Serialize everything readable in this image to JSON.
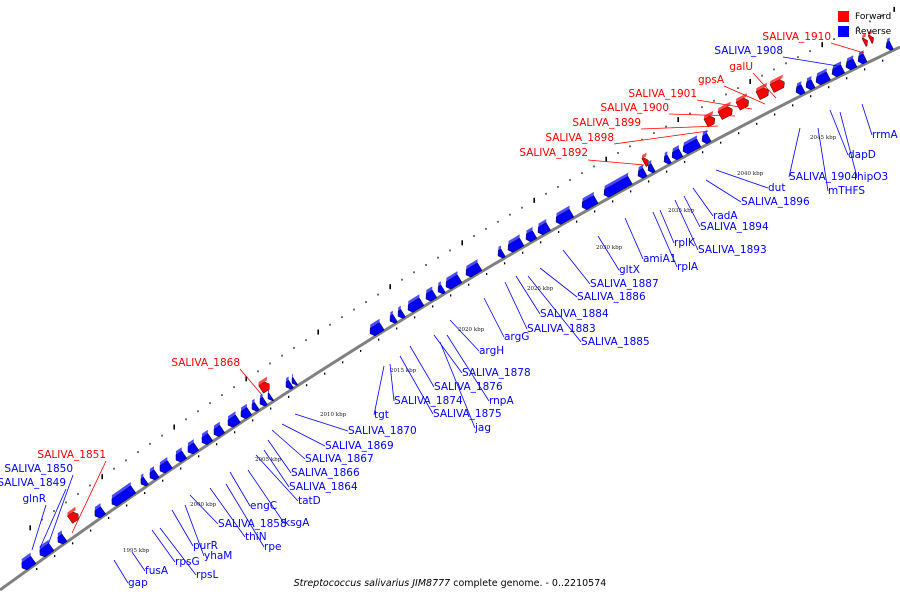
{
  "legend": {
    "forward_label": "Forward",
    "reverse_label": "Reverse",
    "forward_color": "#ff0000",
    "reverse_color": "#0000ff"
  },
  "caption": {
    "organism": "Streptococcus salivarius JIM8777",
    "rest": " complete genome. - 0..2210574"
  },
  "colors": {
    "forward": "#ff0000",
    "reverse": "#0000ff",
    "axis": "#808080"
  },
  "ticks": [
    "1995 kbp",
    "2000 kbp",
    "2005 kbp",
    "2010 kbp",
    "2015 kbp",
    "2020 kbp",
    "2025 kbp",
    "2030 kbp",
    "2035 kbp",
    "2040 kbp",
    "2045 kbp"
  ],
  "forward_genes": [
    "SALIVA_1851",
    "SALIVA_1868",
    "SALIVA_1892",
    "SALIVA_1898",
    "SALIVA_1899",
    "SALIVA_1900",
    "SALIVA_1901",
    "gpsA",
    "galU",
    "SALIVA_1910"
  ],
  "reverse_labels": [
    "SALIVA_1908",
    "glnR",
    "SALIVA_1849",
    "SALIVA_1850",
    "gap",
    "fusA",
    "rpsG",
    "rpsL",
    "purR",
    "yhaM",
    "thiN",
    "rpe",
    "SALIVA_1858",
    "engC",
    "ksgA",
    "tatD",
    "SALIVA_1864",
    "SALIVA_1866",
    "SALIVA_1867",
    "SALIVA_1869",
    "SALIVA_1870",
    "tgt",
    "SALIVA_1874",
    "SALIVA_1875",
    "jag",
    "SALIVA_1876",
    "rnpA",
    "SALIVA_1878",
    "argH",
    "argG",
    "SALIVA_1883",
    "SALIVA_1885",
    "SALIVA_1884",
    "SALIVA_1886",
    "SALIVA_1887",
    "gltX",
    "amiA1",
    "rplA",
    "rplK",
    "SALIVA_1893",
    "SALIVA_1894",
    "radA",
    "SALIVA_1896",
    "dut",
    "SALIVA_1904",
    "mTHFS",
    "hipO3",
    "dapD",
    "rrmA"
  ]
}
